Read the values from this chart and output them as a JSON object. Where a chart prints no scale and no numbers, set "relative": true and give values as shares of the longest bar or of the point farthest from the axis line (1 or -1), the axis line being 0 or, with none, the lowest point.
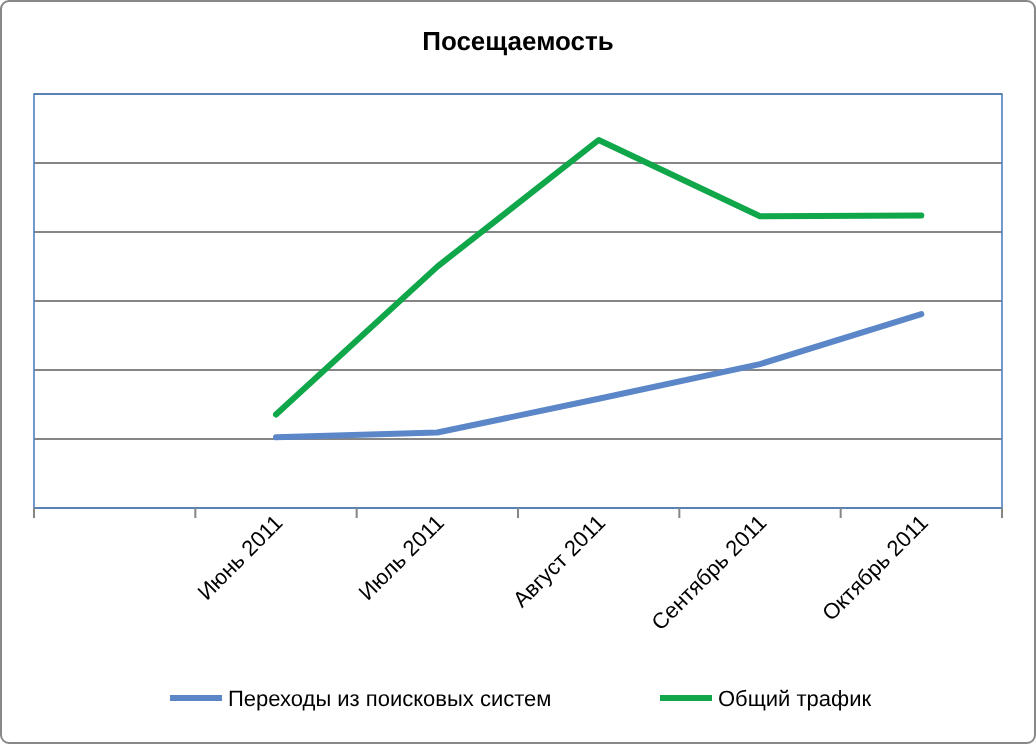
{
  "chart_data": {
    "type": "line",
    "title": "Посещаемость",
    "relative": true,
    "categories": [
      null,
      "Июнь 2011",
      "Июль 2011",
      "Август 2011",
      "Сентябрь 2011",
      "Октябрь 2011"
    ],
    "series": [
      {
        "name": "Переходы из поисковых систем",
        "color": "#5b87c9",
        "values": [
          null,
          0.192,
          0.205,
          0.297,
          0.391,
          0.527
        ]
      },
      {
        "name": "Общий трафик",
        "color": "#10a64a",
        "values": [
          null,
          0.254,
          0.656,
          1,
          0.793,
          0.795
        ]
      }
    ],
    "grid": "y",
    "legend": "bottom",
    "marker": "none",
    "line_style": "solid"
  }
}
